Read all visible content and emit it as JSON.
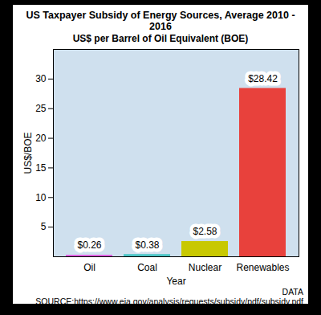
{
  "chart_data": {
    "type": "bar",
    "title": "US Taxpayer Subsidy of Energy Sources, Average 2010 - 2016",
    "subtitle": "US$ per Barrel of Oil Equivalent (BOE)",
    "x_label": "Year",
    "y_label": "US$/BOE",
    "caption": "DATA SOURCE:https://www.eia.gov/analysis/requests/subsidy/pdf/subsidy.pdf",
    "categories": [
      "Oil",
      "Coal",
      "Nuclear",
      "Renewables"
    ],
    "values": [
      0.26,
      0.38,
      2.58,
      28.42
    ],
    "value_labels": [
      "$0.26",
      "$0.38",
      "$2.58",
      "$28.42"
    ],
    "colors": [
      "#e05ce0",
      "#4cc6c6",
      "#c8c800",
      "#e8413c"
    ],
    "ylim": [
      0,
      35
    ],
    "yticks": [
      5,
      10,
      15,
      20,
      25,
      30
    ],
    "data_labels": true,
    "grid": false
  }
}
